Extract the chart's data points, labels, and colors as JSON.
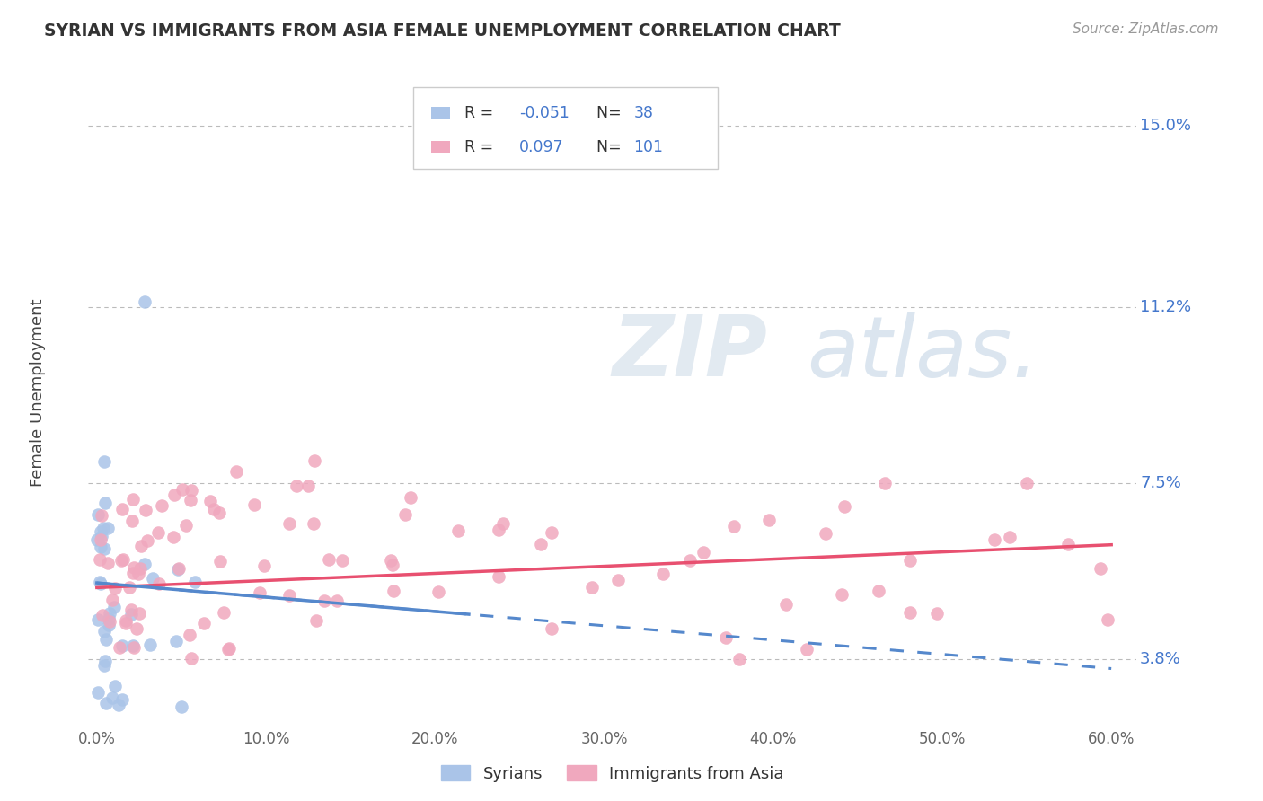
{
  "title": "SYRIAN VS IMMIGRANTS FROM ASIA FEMALE UNEMPLOYMENT CORRELATION CHART",
  "source": "Source: ZipAtlas.com",
  "ylabel": "Female Unemployment",
  "xlim": [
    -0.005,
    0.615
  ],
  "ylim": [
    0.025,
    0.163
  ],
  "yticks": [
    0.038,
    0.075,
    0.112,
    0.15
  ],
  "ytick_labels": [
    "3.8%",
    "7.5%",
    "11.2%",
    "15.0%"
  ],
  "xticks": [
    0.0,
    0.1,
    0.2,
    0.3,
    0.4,
    0.5,
    0.6
  ],
  "xtick_labels": [
    "0.0%",
    "10.0%",
    "20.0%",
    "30.0%",
    "40.0%",
    "50.0%",
    "60.0%"
  ],
  "syrians_R": -0.051,
  "syrians_N": 38,
  "asia_R": 0.097,
  "asia_N": 101,
  "color_syrian": "#aac4e8",
  "color_asia": "#f0a8be",
  "color_syrian_line": "#5588cc",
  "color_asia_line": "#e85070",
  "color_label_blue": "#4477cc",
  "color_text": "#333333",
  "color_source": "#999999",
  "background_color": "#ffffff",
  "grid_color": "#bbbbbb",
  "watermark_text": "ZIPatlas.",
  "legend_label_syr": "Syrians",
  "legend_label_asia": "Immigrants from Asia",
  "syr_trend_x0": 0.0,
  "syr_trend_y0": 0.054,
  "syr_trend_x1": 0.6,
  "syr_trend_y1": 0.036,
  "asia_trend_x0": 0.0,
  "asia_trend_y0": 0.053,
  "asia_trend_x1": 0.6,
  "asia_trend_y1": 0.062
}
